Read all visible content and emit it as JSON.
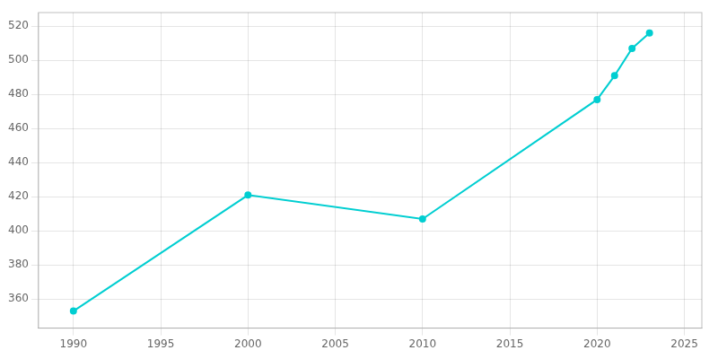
{
  "chart_data": {
    "type": "line",
    "x": [
      1990,
      2000,
      2010,
      2020,
      2021,
      2022,
      2023
    ],
    "values": [
      353,
      421,
      407,
      477,
      491,
      507,
      516
    ],
    "color": "#00CED1",
    "marker": "circle",
    "xlim": [
      1988,
      2026
    ],
    "xticks": [
      1990,
      1995,
      2000,
      2005,
      2010,
      2015,
      2020,
      2025
    ],
    "ylim": [
      343,
      528
    ],
    "yticks": [
      360,
      380,
      400,
      420,
      440,
      460,
      480,
      500,
      520
    ],
    "grid": true
  }
}
